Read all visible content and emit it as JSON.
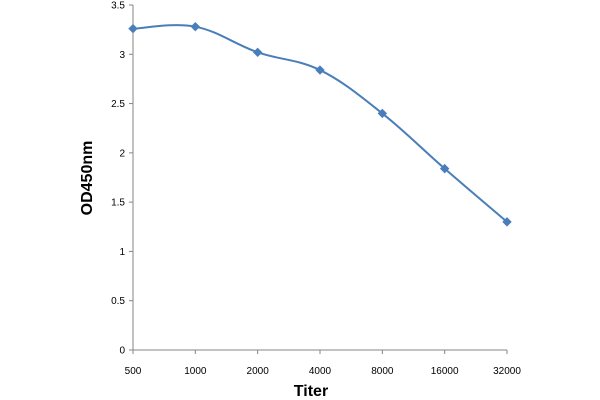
{
  "chart_data": {
    "type": "line",
    "title": "",
    "xlabel": "Titer",
    "ylabel": "OD450nm",
    "categories": [
      "500",
      "1000",
      "2000",
      "4000",
      "8000",
      "16000",
      "32000"
    ],
    "series": [
      {
        "values": [
          3.26,
          3.28,
          3.02,
          2.84,
          2.4,
          1.84,
          1.3
        ],
        "color": "#4a7ebb",
        "marker": "diamond"
      }
    ],
    "yticks": [
      "0",
      "0.5",
      "1",
      "1.5",
      "2",
      "2.5",
      "3",
      "3.5"
    ],
    "ylim": [
      0,
      3.5
    ],
    "grid": false,
    "legend": "none"
  }
}
